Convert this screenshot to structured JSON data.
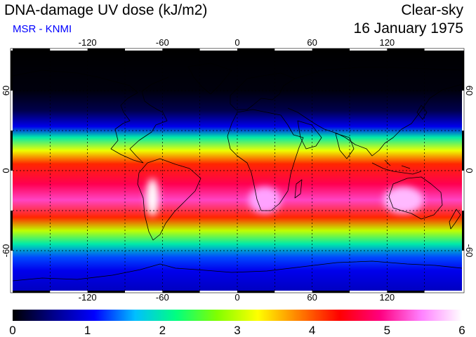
{
  "title": "DNA-damage UV dose (kJ/m2)",
  "subtitle": "MSR - KNMI",
  "sky_condition": "Clear-sky",
  "date": "16 January 1975",
  "colors": {
    "subtitle": "#0000ff",
    "text": "#000000",
    "coastline": "#000000",
    "graticule": "#000000"
  },
  "map": {
    "projection": "equirectangular",
    "lon_range": [
      -180,
      180
    ],
    "lat_range": [
      -90,
      90
    ],
    "graticule_spacing_deg": 30,
    "lon_tick_labels": [
      "-120",
      "-60",
      "0",
      "60",
      "120"
    ],
    "lat_tick_labels": [
      "60",
      "0",
      "-60"
    ]
  },
  "colorbar": {
    "ticks": [
      "0",
      "1",
      "2",
      "3",
      "4",
      "5",
      "6"
    ],
    "range": [
      0,
      6
    ],
    "colormap": [
      "#000000",
      "#00008b",
      "#0000ff",
      "#00bfff",
      "#00ff80",
      "#80ff00",
      "#ffff00",
      "#ff8000",
      "#ff0000",
      "#ff0080",
      "#ff80ff",
      "#ffffff"
    ]
  },
  "dose_profile": [
    {
      "lat": 90,
      "dose": 0.0
    },
    {
      "lat": 60,
      "dose": 0.05
    },
    {
      "lat": 45,
      "dose": 0.3
    },
    {
      "lat": 33,
      "dose": 1.0
    },
    {
      "lat": 25,
      "dose": 2.0
    },
    {
      "lat": 15,
      "dose": 3.2
    },
    {
      "lat": 5,
      "dose": 4.2
    },
    {
      "lat": -10,
      "dose": 4.7
    },
    {
      "lat": -22,
      "dose": 5.2
    },
    {
      "lat": -35,
      "dose": 4.2
    },
    {
      "lat": -45,
      "dose": 3.0
    },
    {
      "lat": -55,
      "dose": 2.0
    },
    {
      "lat": -65,
      "dose": 1.3
    },
    {
      "lat": -75,
      "dose": 1.0
    },
    {
      "lat": -90,
      "dose": 0.8
    }
  ],
  "high_dose_patches": [
    {
      "name": "andes-altiplano",
      "lon": -68,
      "lat": -20,
      "rlon": 5,
      "rlat": 14,
      "dose": 6.0
    },
    {
      "name": "southern-africa",
      "lon": 22,
      "lat": -22,
      "rlon": 13,
      "rlat": 10,
      "dose": 5.6
    },
    {
      "name": "australia",
      "lon": 133,
      "lat": -22,
      "rlon": 16,
      "rlat": 10,
      "dose": 5.7
    }
  ]
}
